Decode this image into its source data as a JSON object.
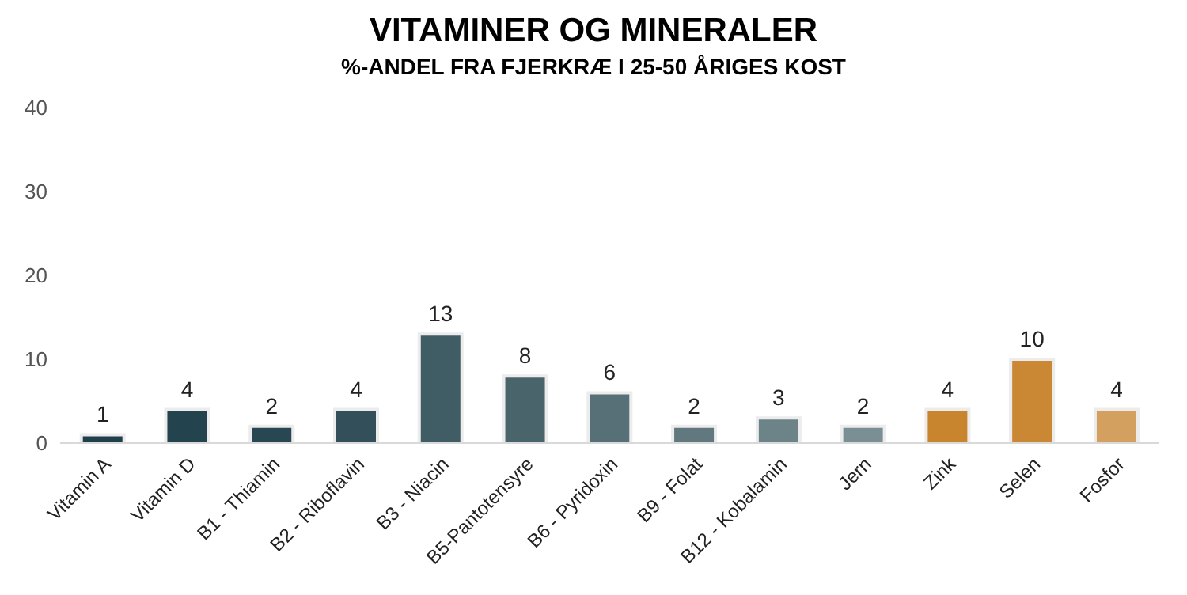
{
  "chart_data": {
    "type": "bar",
    "title": "VITAMINER OG MINERALER",
    "subtitle": "%-ANDEL FRA FJERKRÆ I 25-50 ÅRIGES KOST",
    "categories": [
      "Vitamin A",
      "Vitamin D",
      "B1 - Thiamin",
      "B2 - Riboflavin",
      "B3 - Niacin",
      "B5-Pantotensyre",
      "B6 - Pyridoxin",
      "B9 - Folat",
      "B12 - Kobalamin",
      "Jern",
      "Zink",
      "Selen",
      "Fosfor"
    ],
    "values": [
      1,
      4,
      2,
      4,
      13,
      8,
      6,
      2,
      3,
      2,
      4,
      10,
      4
    ],
    "colors": [
      "#1f3f4a",
      "#23434e",
      "#274852",
      "#33505a",
      "#405c64",
      "#4a646b",
      "#577077",
      "#60787e",
      "#6c8388",
      "#7a8f93",
      "#c8852e",
      "#cb8834",
      "#d4a060"
    ],
    "ylim": [
      0,
      40
    ],
    "yticks": [
      0,
      10,
      20,
      30,
      40
    ],
    "grid": false,
    "data_labels": true
  }
}
